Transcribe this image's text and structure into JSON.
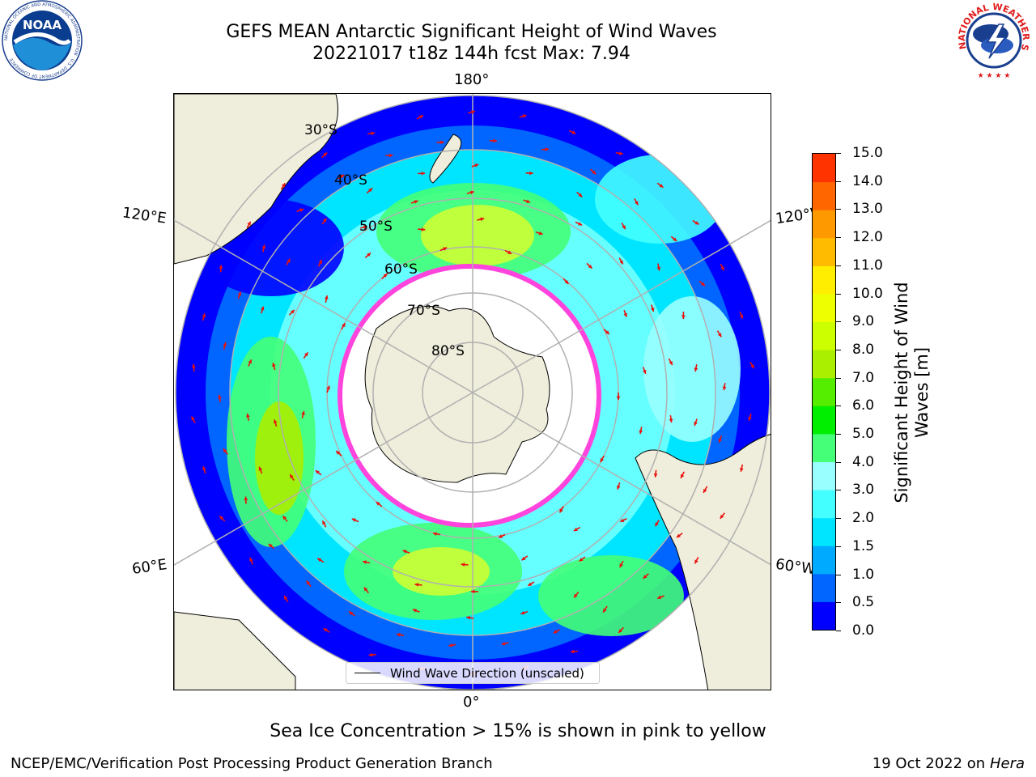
{
  "title": {
    "line1": "GEFS MEAN Antarctic Significant Height of Wind Waves",
    "line2": "20221017 t18z 144h fcst   Max: 7.94"
  },
  "logos": {
    "left": {
      "name": "noaa-logo",
      "text": "NOAA",
      "ring_text": "NATIONAL OCEANIC AND ATMOSPHERIC ADMINISTRATION · U.S. DEPARTMENT OF COMMERCE"
    },
    "right": {
      "name": "nws-logo",
      "ring_text": "NATIONAL WEATHER SERVICE"
    }
  },
  "map": {
    "projection": "south-polar-stereographic",
    "longitude_labels": {
      "top": "180°",
      "bottom": "0°",
      "upper_left": "120°E",
      "upper_right": "120°W",
      "lower_left": "60°E",
      "lower_right": "60°W"
    },
    "latitude_labels": [
      "30°S",
      "40°S",
      "50°S",
      "60°S",
      "70°S",
      "80°S"
    ],
    "colors": {
      "land": "#efeddb",
      "grid": "#b0b0b0",
      "arrow": "#e8120c",
      "sea_ice": "#ff44dd"
    },
    "legend": {
      "label": "Wind Wave Direction (unscaled)"
    }
  },
  "colorbar": {
    "label_line1": "Significant Height of Wind",
    "label_line2": "Waves [m]",
    "ticks": [
      "0.0",
      "0.5",
      "1.0",
      "1.5",
      "2.0",
      "3.0",
      "4.0",
      "5.0",
      "6.0",
      "7.0",
      "8.0",
      "9.0",
      "10.0",
      "11.0",
      "12.0",
      "13.0",
      "14.0",
      "15.0"
    ],
    "colors": [
      "#0000ff",
      "#0066ff",
      "#00aaff",
      "#00e5ff",
      "#44ffff",
      "#99ffff",
      "#44ff77",
      "#00ee00",
      "#55ee00",
      "#aaee00",
      "#ccff00",
      "#eeff00",
      "#ffee00",
      "#ffbb00",
      "#ff9900",
      "#ff6600",
      "#ff3300",
      "#ff0000"
    ]
  },
  "note": "Sea Ice Concentration > 15% is shown in pink to yellow",
  "footer": {
    "left": "NCEP/EMC/Verification Post Processing Product Generation Branch",
    "right_prefix": "19 Oct 2022 on ",
    "right_italic": "Hera"
  }
}
